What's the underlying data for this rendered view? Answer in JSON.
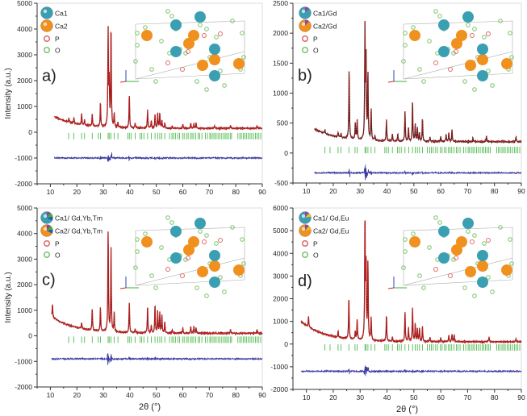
{
  "chart_data": [
    {
      "type": "line",
      "panel_label": "a)",
      "ylabel": "Intensity (a.u.)",
      "xlabel": "",
      "xlim": [
        5,
        90
      ],
      "ylim": [
        -2000,
        5000
      ],
      "xticks": [
        "10",
        "20",
        "30",
        "40",
        "50",
        "60",
        "70",
        "80",
        "90"
      ],
      "yticks": [
        "-2000",
        "-1000",
        "0",
        "1000",
        "2000",
        "3000",
        "4000",
        "5000"
      ],
      "legend": [
        "Ca1",
        "Ca2",
        "P",
        "O"
      ],
      "x_start": 11.5,
      "background": [
        600,
        150
      ],
      "peaks": [
        [
          17.0,
          150
        ],
        [
          18.9,
          200
        ],
        [
          21.8,
          430
        ],
        [
          22.9,
          200
        ],
        [
          25.8,
          480
        ],
        [
          28.9,
          930
        ],
        [
          31.8,
          3750
        ],
        [
          32.2,
          1700
        ],
        [
          32.9,
          3850
        ],
        [
          34.1,
          540
        ],
        [
          35.5,
          200
        ],
        [
          39.8,
          1250
        ],
        [
          42.0,
          200
        ],
        [
          46.7,
          700
        ],
        [
          48.1,
          300
        ],
        [
          49.5,
          520
        ],
        [
          50.5,
          580
        ],
        [
          51.3,
          600
        ],
        [
          52.1,
          300
        ],
        [
          53.2,
          200
        ],
        [
          56,
          100
        ],
        [
          60,
          150
        ],
        [
          63,
          200
        ],
        [
          64.2,
          170
        ],
        [
          65,
          200
        ],
        [
          72,
          90
        ],
        [
          78,
          120
        ],
        [
          88,
          100
        ]
      ],
      "bragg_level": -150,
      "difference_level": -1000,
      "series_colors": {
        "observed": "#e03030",
        "calculated": "#8a1010",
        "bragg": "#3bb23b",
        "difference": "#3a3aa0"
      }
    },
    {
      "type": "line",
      "panel_label": "b)",
      "ylabel": "",
      "xlabel": "",
      "xlim": [
        5,
        90
      ],
      "ylim": [
        -500,
        2500
      ],
      "xticks": [
        "10",
        "20",
        "30",
        "40",
        "50",
        "60",
        "70",
        "80",
        "90"
      ],
      "yticks": [
        "-500",
        "0",
        "500",
        "1000",
        "1500",
        "2000",
        "2500"
      ],
      "legend": [
        "Ca1/Gd",
        "Ca2/Gd",
        "P",
        "O"
      ],
      "x_start": 13,
      "background": [
        400,
        190
      ],
      "peaks": [
        [
          16.9,
          60
        ],
        [
          21.8,
          80
        ],
        [
          22.9,
          70
        ],
        [
          25.9,
          1150
        ],
        [
          28.2,
          260
        ],
        [
          28.9,
          320
        ],
        [
          31.8,
          1850
        ],
        [
          32.2,
          1300
        ],
        [
          32.9,
          1100
        ],
        [
          34.1,
          520
        ],
        [
          35.5,
          80
        ],
        [
          39.8,
          350
        ],
        [
          42,
          120
        ],
        [
          44,
          120
        ],
        [
          46.7,
          500
        ],
        [
          48,
          230
        ],
        [
          49.5,
          650
        ],
        [
          50.5,
          280
        ],
        [
          51.3,
          230
        ],
        [
          52.1,
          150
        ],
        [
          53.2,
          380
        ],
        [
          56,
          80
        ],
        [
          60,
          90
        ],
        [
          62,
          120
        ],
        [
          63,
          150
        ],
        [
          64.2,
          200
        ],
        [
          72,
          60
        ],
        [
          77,
          90
        ],
        [
          88,
          80
        ]
      ],
      "bragg_level": 50,
      "difference_level": -330,
      "series_colors": {
        "observed": "#e03030",
        "calculated": "#3a1010",
        "bragg": "#3bb23b",
        "difference": "#3a3aa0"
      }
    },
    {
      "type": "line",
      "panel_label": "c)",
      "ylabel": "Intensity (a.u.)",
      "xlabel": "2θ (°)",
      "xlim": [
        5,
        90
      ],
      "ylim": [
        -2000,
        5000
      ],
      "xticks": [
        "10",
        "20",
        "30",
        "40",
        "50",
        "60",
        "70",
        "80",
        "90"
      ],
      "yticks": [
        "-2000",
        "-1000",
        "0",
        "1000",
        "2000",
        "3000",
        "4000",
        "5000"
      ],
      "legend": [
        "Ca1/ Gd,Yb,Tm",
        "Ca2/ Gd,Yb,Tm",
        "P",
        "O"
      ],
      "x_start": 10.5,
      "background": [
        750,
        100
      ],
      "peaks": [
        [
          10.8,
          500
        ],
        [
          21.8,
          250
        ],
        [
          25.8,
          830
        ],
        [
          28.9,
          930
        ],
        [
          31.8,
          3980
        ],
        [
          32.9,
          3230
        ],
        [
          34.1,
          750
        ],
        [
          39.8,
          1180
        ],
        [
          42,
          150
        ],
        [
          46.7,
          1060
        ],
        [
          48.1,
          300
        ],
        [
          49.5,
          1100
        ],
        [
          50.5,
          850
        ],
        [
          51.3,
          780
        ],
        [
          52.1,
          700
        ],
        [
          53.2,
          450
        ],
        [
          56,
          150
        ],
        [
          60,
          200
        ],
        [
          63,
          250
        ],
        [
          64.2,
          270
        ],
        [
          65,
          200
        ],
        [
          78,
          150
        ],
        [
          88,
          150
        ]
      ],
      "bragg_level": -150,
      "difference_level": -900,
      "series_colors": {
        "observed": "#e03030",
        "calculated": "#8a1010",
        "bragg": "#3bb23b",
        "difference": "#3a3aa0"
      }
    },
    {
      "type": "line",
      "panel_label": "d)",
      "ylabel": "",
      "xlabel": "2θ (°)",
      "xlim": [
        5,
        90
      ],
      "ylim": [
        -2000,
        6000
      ],
      "xticks": [
        "10",
        "20",
        "30",
        "40",
        "50",
        "60",
        "70",
        "80",
        "90"
      ],
      "yticks": [
        "-2000",
        "-1000",
        "0",
        "1000",
        "2000",
        "3000",
        "4000",
        "5000",
        "6000"
      ],
      "legend": [
        "Ca1/ Gd,Eu",
        "Ca2/ Gd,Eu",
        "P",
        "O"
      ],
      "x_start": 8,
      "background": [
        1000,
        100
      ],
      "peaks": [
        [
          10.8,
          450
        ],
        [
          21.8,
          300
        ],
        [
          25.8,
          1850
        ],
        [
          28.2,
          350
        ],
        [
          28.9,
          870
        ],
        [
          31.8,
          5300
        ],
        [
          32.2,
          3300
        ],
        [
          32.9,
          3400
        ],
        [
          34.1,
          1000
        ],
        [
          39.8,
          1150
        ],
        [
          42,
          200
        ],
        [
          46.7,
          1300
        ],
        [
          48,
          600
        ],
        [
          49.5,
          1500
        ],
        [
          50.5,
          800
        ],
        [
          51.3,
          550
        ],
        [
          52.1,
          600
        ],
        [
          53.2,
          650
        ],
        [
          56,
          200
        ],
        [
          60,
          200
        ],
        [
          63,
          300
        ],
        [
          64.2,
          350
        ],
        [
          65,
          300
        ],
        [
          78,
          200
        ],
        [
          88,
          150
        ]
      ],
      "bragg_level": -150,
      "difference_level": -1200,
      "series_colors": {
        "observed": "#e03030",
        "calculated": "#8a1010",
        "bragg": "#3bb23b",
        "difference": "#3a3aa0"
      }
    }
  ],
  "bragg_positions": [
    10.8,
    16.9,
    18.8,
    21.8,
    22.9,
    25.8,
    28.1,
    28.9,
    31.8,
    32.2,
    32.9,
    34.1,
    35.5,
    39.2,
    39.8,
    40.5,
    42.0,
    43.9,
    44.5,
    45.3,
    46.7,
    48.1,
    49.5,
    50.5,
    51.3,
    52.1,
    53.2,
    55.0,
    55.9,
    56.5,
    57.2,
    58.1,
    58.8,
    59.9,
    60.5,
    61.4,
    62.0,
    62.9,
    63.5,
    64.1,
    64.9,
    65.8,
    66.4,
    67.2,
    68.5,
    69.3,
    70.2,
    70.7,
    71.4,
    72.0,
    72.6,
    73.3,
    74.0,
    74.7,
    75.4,
    76.0,
    76.6,
    77.2,
    77.9,
    78.4,
    80.8,
    81.5,
    82.1,
    82.8,
    83.4,
    84.0,
    84.7,
    85.4,
    86.0,
    86.7,
    87.4,
    88.0,
    88.7,
    89.4
  ],
  "legend_colors": {
    "ca1": "#3a9fb2",
    "ca2": "#f0901e",
    "p": "#e06a6a",
    "o": "#7cc46a",
    "gd": "#8a4aa0",
    "yb": "#3bb23b",
    "tm": "#2a5aa8",
    "eu": "#e8c020"
  }
}
